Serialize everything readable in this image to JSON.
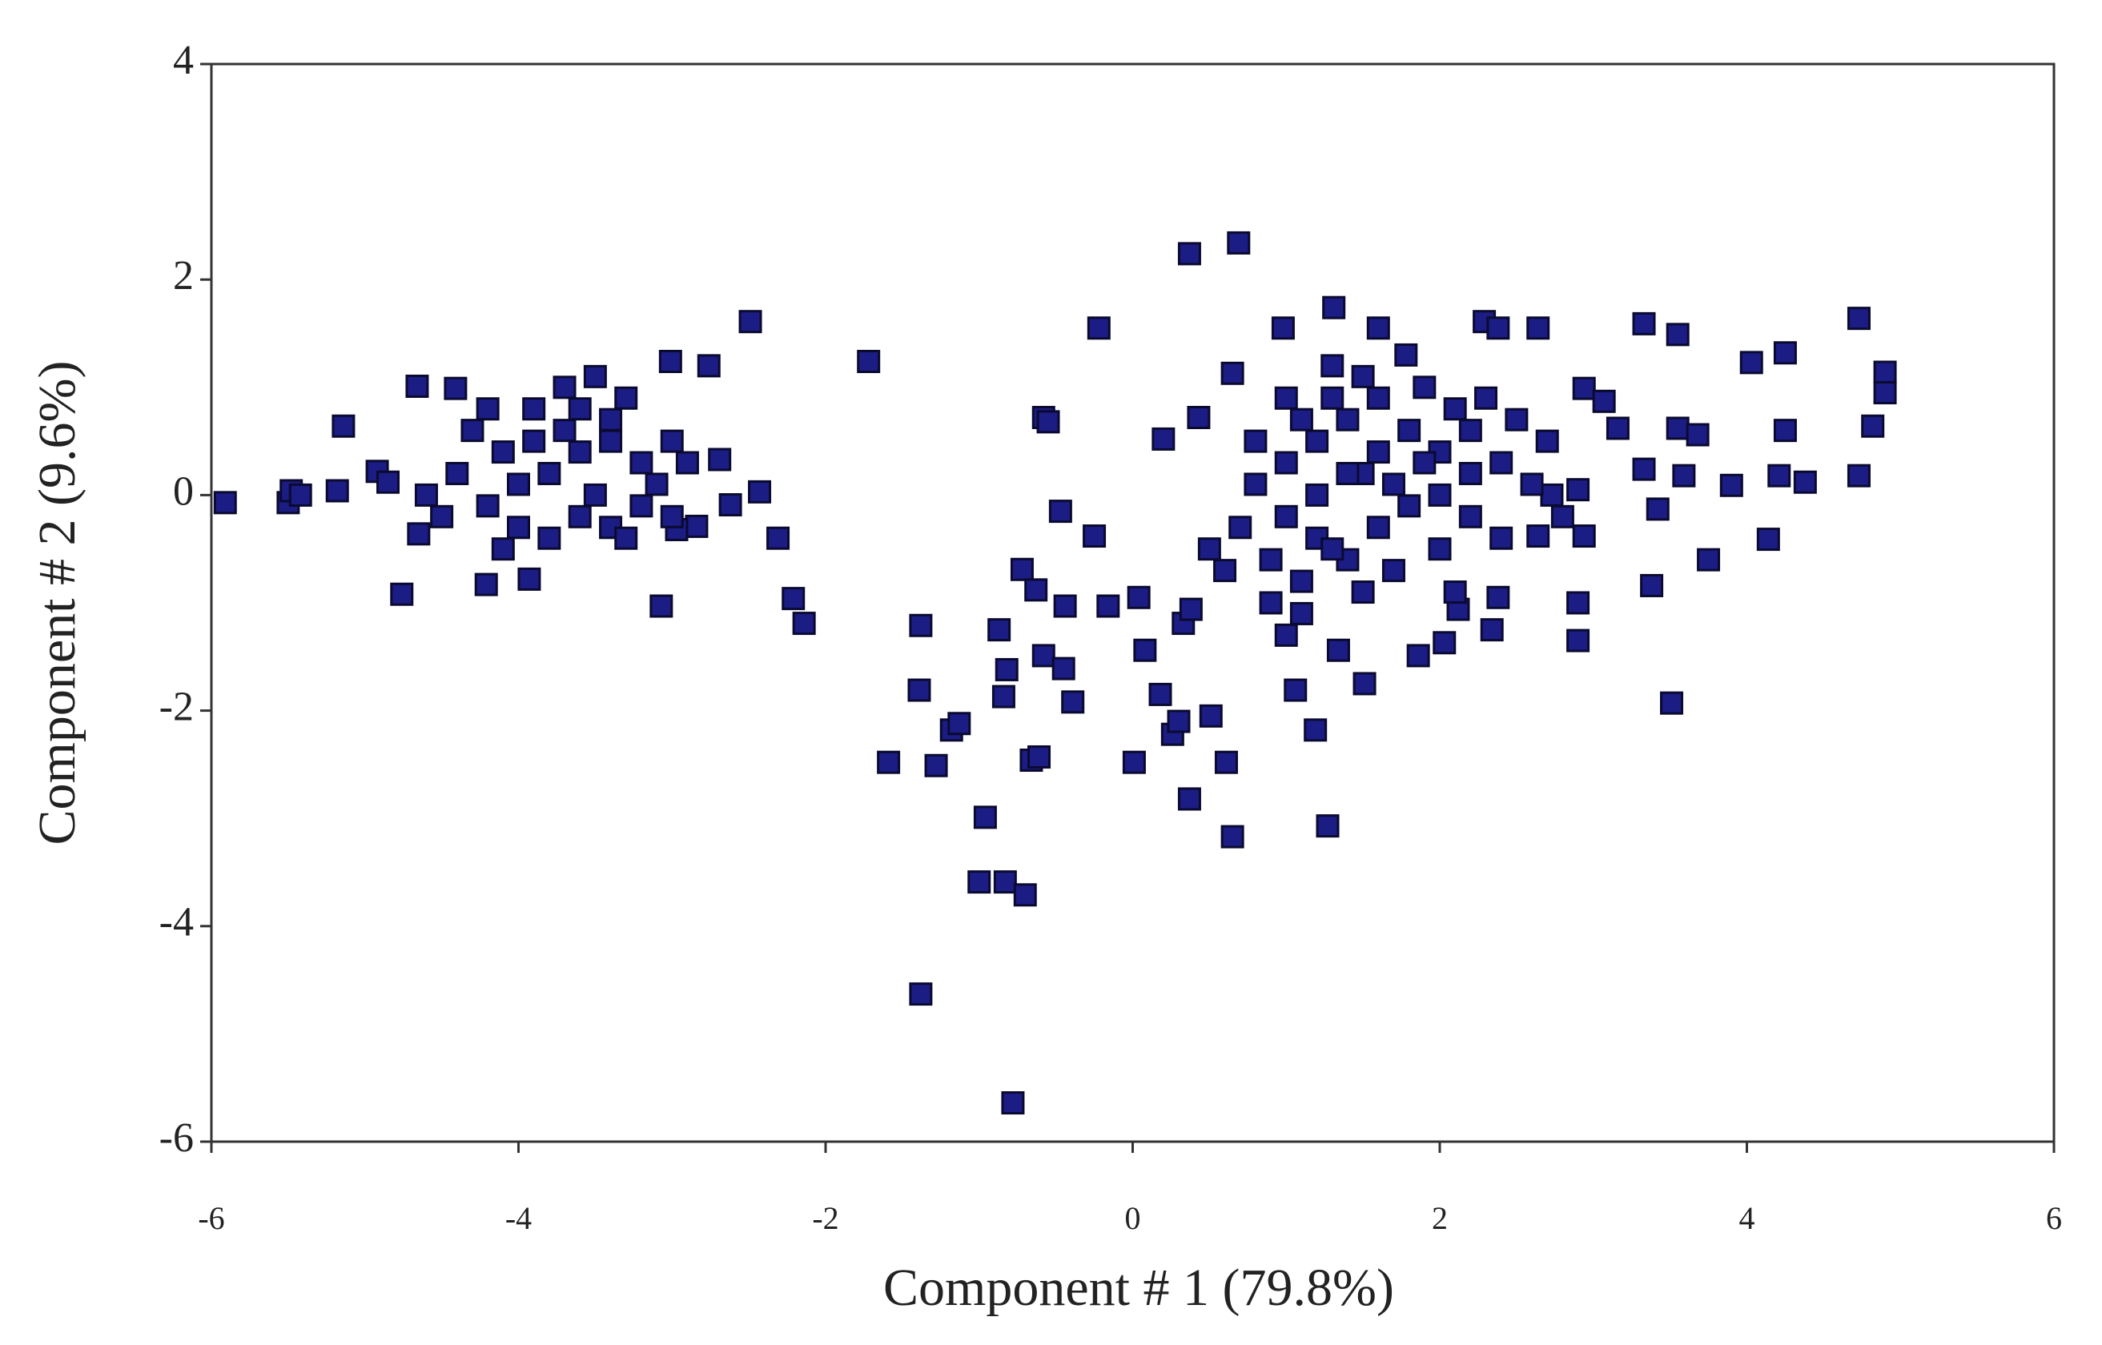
{
  "chart_data": {
    "type": "scatter",
    "x_label": "Component # 1 (79.8%)",
    "y_label": "Component # 2 (9.6%)",
    "color": "#1c1c85",
    "xlim": [
      -6,
      6
    ],
    "xticks": [
      -6,
      -4,
      -2,
      0,
      2,
      4,
      6
    ],
    "ylim": [
      -6,
      4
    ],
    "yticks": [
      -6,
      -4,
      -2,
      0,
      2,
      4
    ],
    "x": [
      -5.91,
      -5.5,
      -5.48,
      -5.42,
      -5.18,
      -5.14,
      -4.92,
      -4.85,
      -4.76,
      -4.66,
      -4.65,
      -4.41,
      -4.21,
      -3.93,
      -3.07,
      -3.01,
      -2.76,
      -2.49,
      -2.69,
      -2.62,
      -2.43,
      -2.31,
      -2.21,
      -2.14,
      -2.84,
      -2.97,
      -4.3,
      -4.1,
      -3.9,
      -3.7,
      -3.5,
      -3.3,
      -4.0,
      -3.8,
      -3.6,
      -3.4,
      -3.2,
      -3.0,
      -4.2,
      -4.0,
      -3.8,
      -3.6,
      -3.4,
      -3.2,
      -4.4,
      -4.5,
      -3.9,
      -3.7,
      -3.5,
      -3.3,
      -4.1,
      -3.1,
      -2.9,
      -3.6,
      -4.2,
      -3.4,
      -4.6,
      -3.0,
      -1.72,
      -1.59,
      -1.28,
      -1.38,
      -1.39,
      -1.38,
      -1.18,
      -1.13,
      -0.96,
      -1.0,
      -0.83,
      -0.7,
      -0.78,
      -0.87,
      -0.84,
      -0.82,
      -0.72,
      -0.63,
      -0.66,
      -0.61,
      -0.58,
      -0.55,
      -0.47,
      -0.58,
      -0.45,
      -0.39,
      -0.44,
      -0.25,
      -0.22,
      -0.16,
      0.04,
      0.08,
      0.01,
      0.18,
      0.26,
      0.3,
      0.37,
      0.37,
      0.69,
      0.2,
      0.43,
      0.33,
      0.38,
      0.51,
      0.61,
      0.65,
      0.65,
      0.98,
      1.31,
      1.06,
      1.19,
      1.27,
      1.6,
      1.78,
      1.51,
      1.34,
      1.86,
      2.03,
      2.12,
      2.29,
      2.38,
      2.64,
      2.34,
      2.38,
      2.9,
      2.94,
      2.9,
      2.9,
      2.94,
      3.07,
      3.33,
      3.55,
      3.38,
      3.51,
      3.42,
      3.55,
      3.68,
      3.75,
      3.9,
      4.03,
      4.25,
      4.25,
      4.14,
      4.21,
      4.38,
      4.73,
      4.73,
      4.82,
      4.9,
      4.9,
      3.16,
      3.59,
      3.33,
      2.64,
      2.73,
      0.8,
      1.0,
      1.2,
      1.4,
      1.6,
      1.8,
      2.0,
      2.2,
      2.4,
      2.6,
      1.0,
      1.2,
      1.4,
      1.6,
      1.8,
      2.0,
      2.2,
      2.4,
      0.9,
      1.1,
      1.3,
      1.5,
      1.7,
      1.9,
      2.1,
      2.3,
      1.1,
      1.3,
      0.7,
      0.6,
      0.9,
      1.1,
      1.5,
      1.7,
      2.5,
      2.7,
      2.8,
      1.0,
      0.8,
      1.6,
      1.2,
      1.4,
      2.0,
      1.9,
      1.5,
      1.3,
      2.2,
      0.5,
      1.0,
      2.1
    ],
    "values": [
      -0.07,
      -0.07,
      0.04,
      0,
      0.04,
      0.64,
      0.22,
      0.12,
      -0.92,
      1.01,
      -0.36,
      0.99,
      -0.83,
      -0.78,
      -1.03,
      1.24,
      1.2,
      1.61,
      0.33,
      -0.09,
      0.03,
      -0.4,
      -0.96,
      -1.19,
      -0.29,
      -0.32,
      0.6,
      0.4,
      0.8,
      1.0,
      1.1,
      0.9,
      0.1,
      0.2,
      0.4,
      0.5,
      0.3,
      0.5,
      -0.1,
      -0.3,
      -0.4,
      -0.2,
      -0.3,
      -0.1,
      0.2,
      -0.2,
      0.5,
      0.6,
      0.0,
      -0.4,
      -0.5,
      0.1,
      0.3,
      0.8,
      0.8,
      0.7,
      0.0,
      -0.2,
      1.24,
      -2.48,
      -2.51,
      -1.21,
      -1.81,
      -4.63,
      -2.18,
      -2.12,
      -2.99,
      -3.59,
      -3.59,
      -3.71,
      -5.64,
      -1.25,
      -1.87,
      -1.62,
      -0.69,
      -0.88,
      -2.46,
      -2.43,
      0.72,
      0.68,
      -0.15,
      -1.49,
      -1.61,
      -1.92,
      -1.03,
      -0.38,
      1.55,
      -1.03,
      -0.95,
      -1.44,
      -2.48,
      -1.85,
      -2.22,
      -2.1,
      -2.82,
      2.24,
      2.34,
      0.52,
      0.72,
      -1.19,
      -1.06,
      -2.05,
      -2.48,
      -3.17,
      1.13,
      1.55,
      1.74,
      -1.81,
      -2.18,
      -3.07,
      1.55,
      1.3,
      -1.75,
      -1.44,
      -1.49,
      -1.37,
      -1.06,
      1.61,
      1.55,
      1.55,
      -1.25,
      -0.95,
      0.05,
      -0.38,
      -1.0,
      -1.35,
      0.99,
      0.87,
      1.59,
      1.49,
      -0.84,
      -1.93,
      -0.13,
      0.62,
      0.56,
      -0.6,
      0.09,
      1.23,
      1.32,
      0.6,
      -0.41,
      0.18,
      0.12,
      1.64,
      0.18,
      0.64,
      1.14,
      0.95,
      0.62,
      0.18,
      0.24,
      -0.38,
      0,
      0.1,
      0.3,
      0.5,
      0.7,
      0.9,
      0.6,
      0.4,
      0.6,
      0.3,
      0.1,
      -0.2,
      -0.4,
      -0.6,
      -0.3,
      -0.1,
      0.0,
      -0.2,
      -0.4,
      -0.6,
      -0.8,
      -0.5,
      0.2,
      0.1,
      0.3,
      0.8,
      0.9,
      0.7,
      0.9,
      -0.3,
      -0.7,
      -1.0,
      -1.1,
      -0.9,
      -0.7,
      0.7,
      0.5,
      -0.2,
      0.9,
      0.5,
      0.4,
      0.0,
      0.2,
      -0.5,
      1.0,
      1.1,
      1.2,
      0.2,
      -0.5,
      -1.3,
      -0.9
    ]
  }
}
